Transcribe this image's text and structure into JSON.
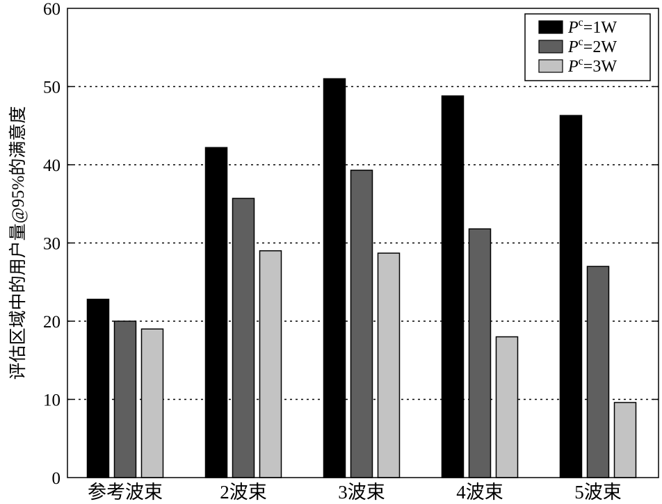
{
  "chart_data": {
    "type": "bar",
    "categories": [
      "参考波束",
      "2波束",
      "3波束",
      "4波束",
      "5波束"
    ],
    "series": [
      {
        "name_base": "P",
        "name_sup": "c",
        "name_rest": "=1W",
        "color": "#000000",
        "values": [
          22.8,
          42.2,
          51.0,
          48.8,
          46.3
        ]
      },
      {
        "name_base": "P",
        "name_sup": "c",
        "name_rest": "=2W",
        "color": "#5f5f5f",
        "values": [
          20.0,
          35.7,
          39.3,
          31.8,
          27.0
        ]
      },
      {
        "name_base": "P",
        "name_sup": "c",
        "name_rest": "=3W",
        "color": "#c3c3c3",
        "values": [
          19.0,
          29.0,
          28.7,
          18.0,
          9.6
        ]
      }
    ],
    "yticks": [
      "0",
      "10",
      "20",
      "30",
      "40",
      "50",
      "60"
    ],
    "ylabel": "评估区域中的用户量@95%的满意度",
    "xlabel": "",
    "title": "",
    "ylim": [
      0,
      60
    ],
    "grid": "horizontal dotted",
    "legend_position": "top-right"
  }
}
